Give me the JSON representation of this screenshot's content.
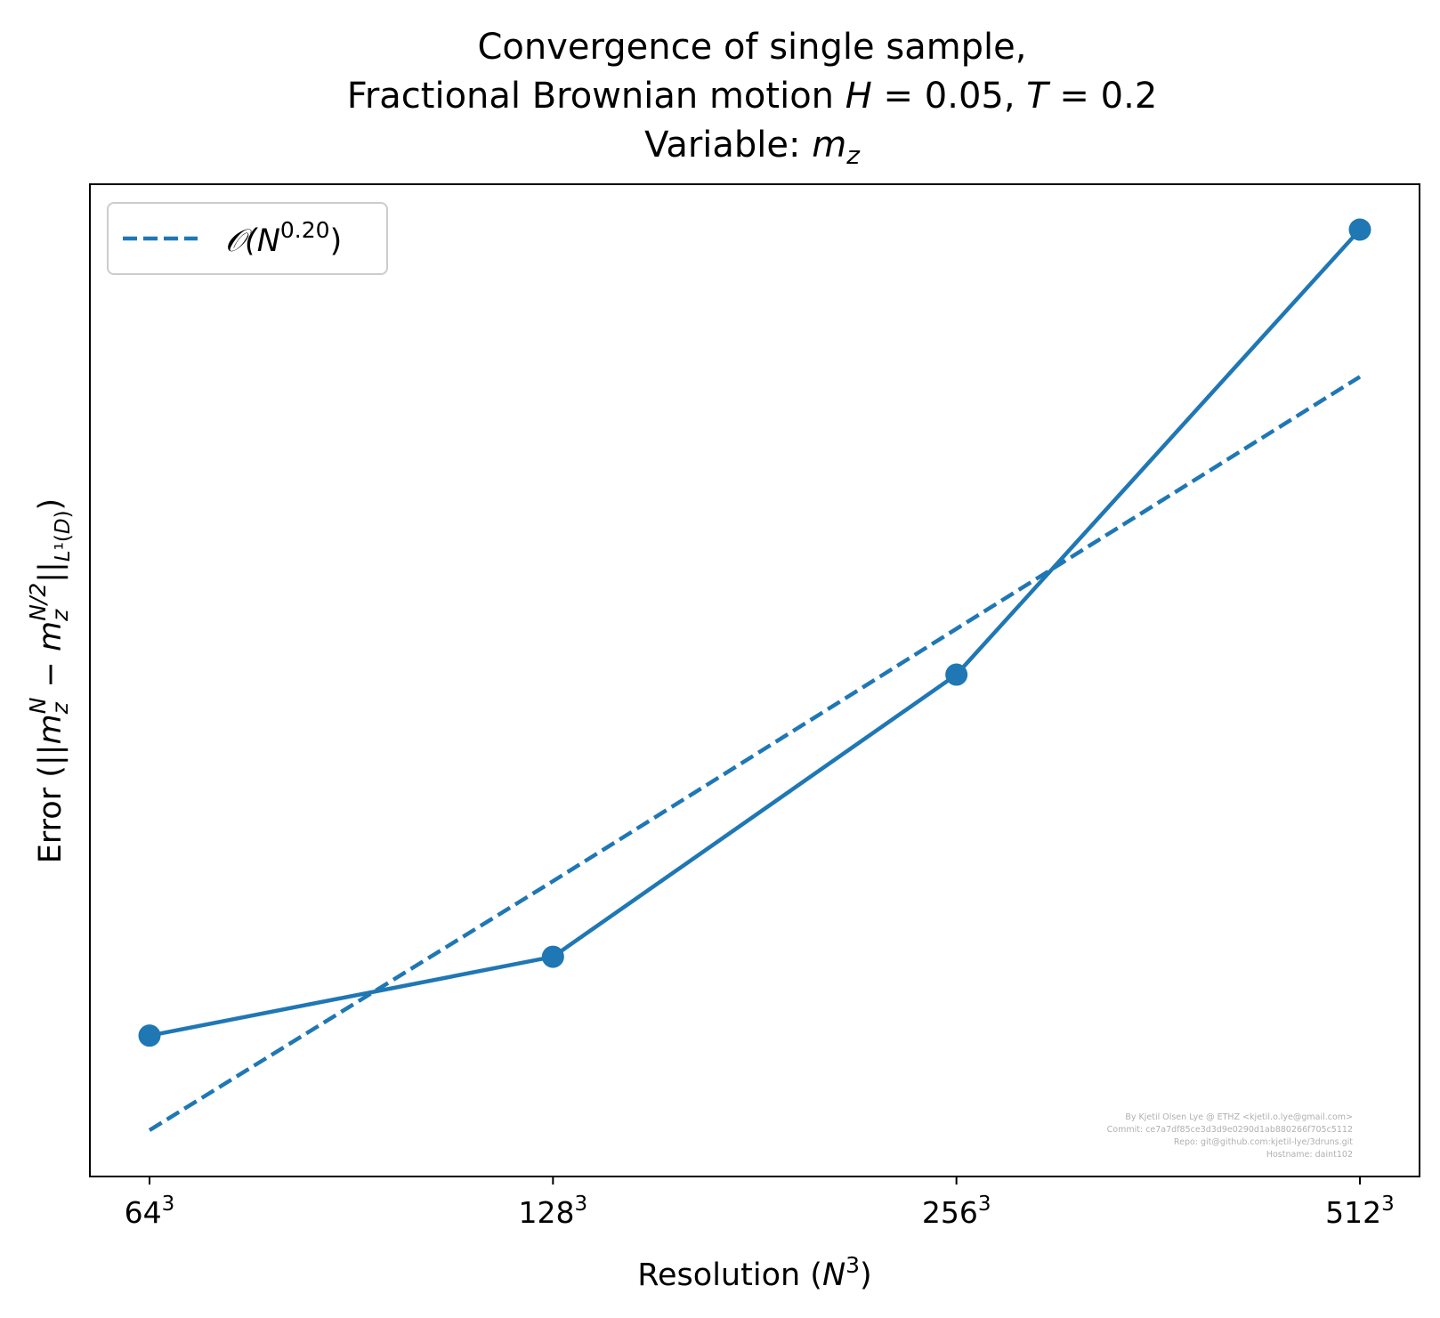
{
  "chart_data": {
    "type": "line",
    "title": {
      "line1": "Convergence of single sample,",
      "line2": "Fractional Brownian motion H = 0.05, T = 0.2",
      "line3": "Variable: m_z"
    },
    "xlabel": "Resolution (N^3)",
    "ylabel": "Error (||m_z^N − m_z^{N/2}||_{L^1(D)})",
    "x_scale": "log2",
    "y_scale": "log",
    "x": [
      64,
      128,
      256,
      512
    ],
    "x_tick_labels": [
      "64",
      "128",
      "256",
      "512"
    ],
    "x_tick_exponent": "3",
    "series": [
      {
        "name": "",
        "style": "solid line with circle markers",
        "color": "#1f77b4",
        "relative_values": [
          1.0,
          1.23,
          2.58,
          8.3
        ]
      },
      {
        "name": "O(N^0.20)",
        "style": "dashed line",
        "color": "#1f77b4",
        "relative_values": [
          0.78,
          1.5,
          2.91,
          5.64
        ]
      }
    ],
    "y_ticks_shown": false,
    "grid": false,
    "legend": {
      "position": "top-left",
      "label": "𝒪(N",
      "label_exponent": "0.20",
      "label_close": ")"
    },
    "watermark": [
      "By Kjetil Olsen Lye @ ETHZ <kjetil.o.lye@gmail.com>",
      "Commit: ce7a7df85ce3d3d9e0290d1ab880266f705c5112",
      "Repo: git@github.com:kjetil-lye/3druns.git",
      "Hostname: daint102"
    ]
  }
}
